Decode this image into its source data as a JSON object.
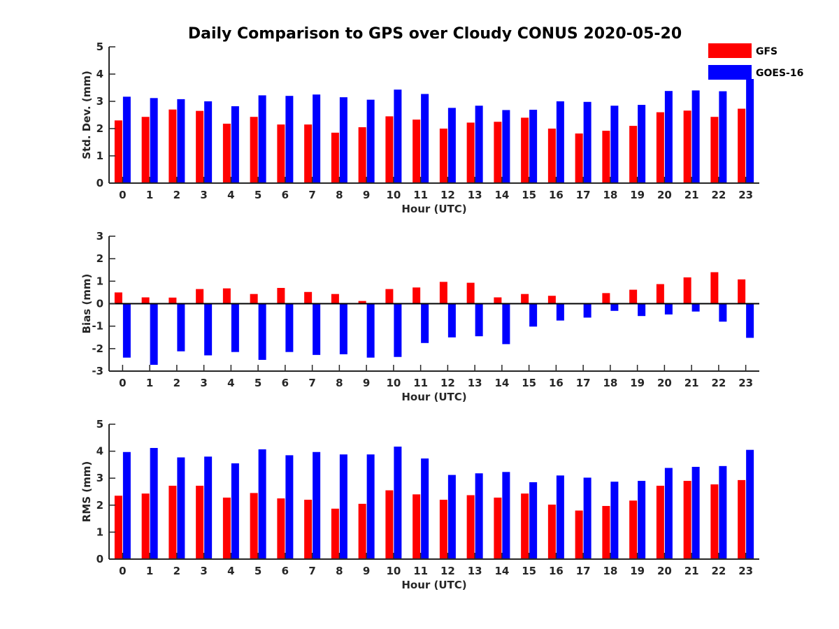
{
  "title": "Daily Comparison to GPS over Cloudy CONUS 2020-05-20",
  "colors": {
    "GFS": "#ff0000",
    "GOES-16": "#0000ff",
    "axis": "#262626"
  },
  "legend": {
    "position": "top-right",
    "entries": [
      "GFS",
      "GOES-16"
    ]
  },
  "chart_data": [
    {
      "type": "bar",
      "xlabel": "Hour (UTC)",
      "ylabel": "Std. Dev. (mm)",
      "ylim": [
        0,
        5
      ],
      "yticks": [
        0,
        1,
        2,
        3,
        4,
        5
      ],
      "categories": [
        "0",
        "1",
        "2",
        "3",
        "4",
        "5",
        "6",
        "7",
        "8",
        "9",
        "10",
        "11",
        "12",
        "13",
        "14",
        "15",
        "16",
        "17",
        "18",
        "19",
        "20",
        "21",
        "22",
        "23"
      ],
      "series": [
        {
          "name": "GFS",
          "values": [
            2.3,
            2.43,
            2.7,
            2.65,
            2.18,
            2.43,
            2.15,
            2.15,
            1.85,
            2.05,
            2.45,
            2.33,
            2.0,
            2.22,
            2.25,
            2.4,
            2.0,
            1.82,
            1.92,
            2.1,
            2.6,
            2.66,
            2.43,
            2.73
          ]
        },
        {
          "name": "GOES-16",
          "values": [
            3.17,
            3.12,
            3.08,
            3.0,
            2.82,
            3.22,
            3.2,
            3.25,
            3.15,
            3.06,
            3.43,
            3.27,
            2.76,
            2.84,
            2.68,
            2.69,
            3.0,
            2.98,
            2.84,
            2.87,
            3.38,
            3.4,
            3.37,
            3.82
          ]
        }
      ]
    },
    {
      "type": "bar",
      "xlabel": "Hour (UTC)",
      "ylabel": "Bias (mm)",
      "ylim": [
        -3,
        3
      ],
      "yticks": [
        -3,
        -2,
        -1,
        0,
        1,
        2,
        3
      ],
      "categories": [
        "0",
        "1",
        "2",
        "3",
        "4",
        "5",
        "6",
        "7",
        "8",
        "9",
        "10",
        "11",
        "12",
        "13",
        "14",
        "15",
        "16",
        "17",
        "18",
        "19",
        "20",
        "21",
        "22",
        "23"
      ],
      "series": [
        {
          "name": "GFS",
          "values": [
            0.5,
            0.28,
            0.27,
            0.65,
            0.68,
            0.43,
            0.7,
            0.52,
            0.43,
            0.12,
            0.65,
            0.72,
            0.97,
            0.93,
            0.28,
            0.43,
            0.35,
            0.0,
            0.47,
            0.62,
            0.87,
            1.17,
            1.4,
            1.08
          ]
        },
        {
          "name": "GOES-16",
          "values": [
            -2.4,
            -2.72,
            -2.12,
            -2.3,
            -2.15,
            -2.5,
            -2.15,
            -2.28,
            -2.25,
            -2.4,
            -2.37,
            -1.75,
            -1.5,
            -1.45,
            -1.8,
            -1.02,
            -0.75,
            -0.62,
            -0.32,
            -0.55,
            -0.48,
            -0.35,
            -0.8,
            -1.52
          ]
        }
      ]
    },
    {
      "type": "bar",
      "xlabel": "Hour (UTC)",
      "ylabel": "RMS (mm)",
      "ylim": [
        0,
        5
      ],
      "yticks": [
        0,
        1,
        2,
        3,
        4,
        5
      ],
      "categories": [
        "0",
        "1",
        "2",
        "3",
        "4",
        "5",
        "6",
        "7",
        "8",
        "9",
        "10",
        "11",
        "12",
        "13",
        "14",
        "15",
        "16",
        "17",
        "18",
        "19",
        "20",
        "21",
        "22",
        "23"
      ],
      "series": [
        {
          "name": "GFS",
          "values": [
            2.35,
            2.43,
            2.72,
            2.72,
            2.28,
            2.45,
            2.25,
            2.2,
            1.87,
            2.05,
            2.55,
            2.4,
            2.2,
            2.37,
            2.28,
            2.43,
            2.02,
            1.8,
            1.97,
            2.17,
            2.72,
            2.9,
            2.77,
            2.93
          ]
        },
        {
          "name": "GOES-16",
          "values": [
            3.97,
            4.12,
            3.77,
            3.8,
            3.55,
            4.07,
            3.85,
            3.97,
            3.88,
            3.88,
            4.17,
            3.73,
            3.12,
            3.18,
            3.23,
            2.85,
            3.1,
            3.02,
            2.87,
            2.9,
            3.38,
            3.42,
            3.45,
            4.05
          ]
        }
      ]
    }
  ]
}
